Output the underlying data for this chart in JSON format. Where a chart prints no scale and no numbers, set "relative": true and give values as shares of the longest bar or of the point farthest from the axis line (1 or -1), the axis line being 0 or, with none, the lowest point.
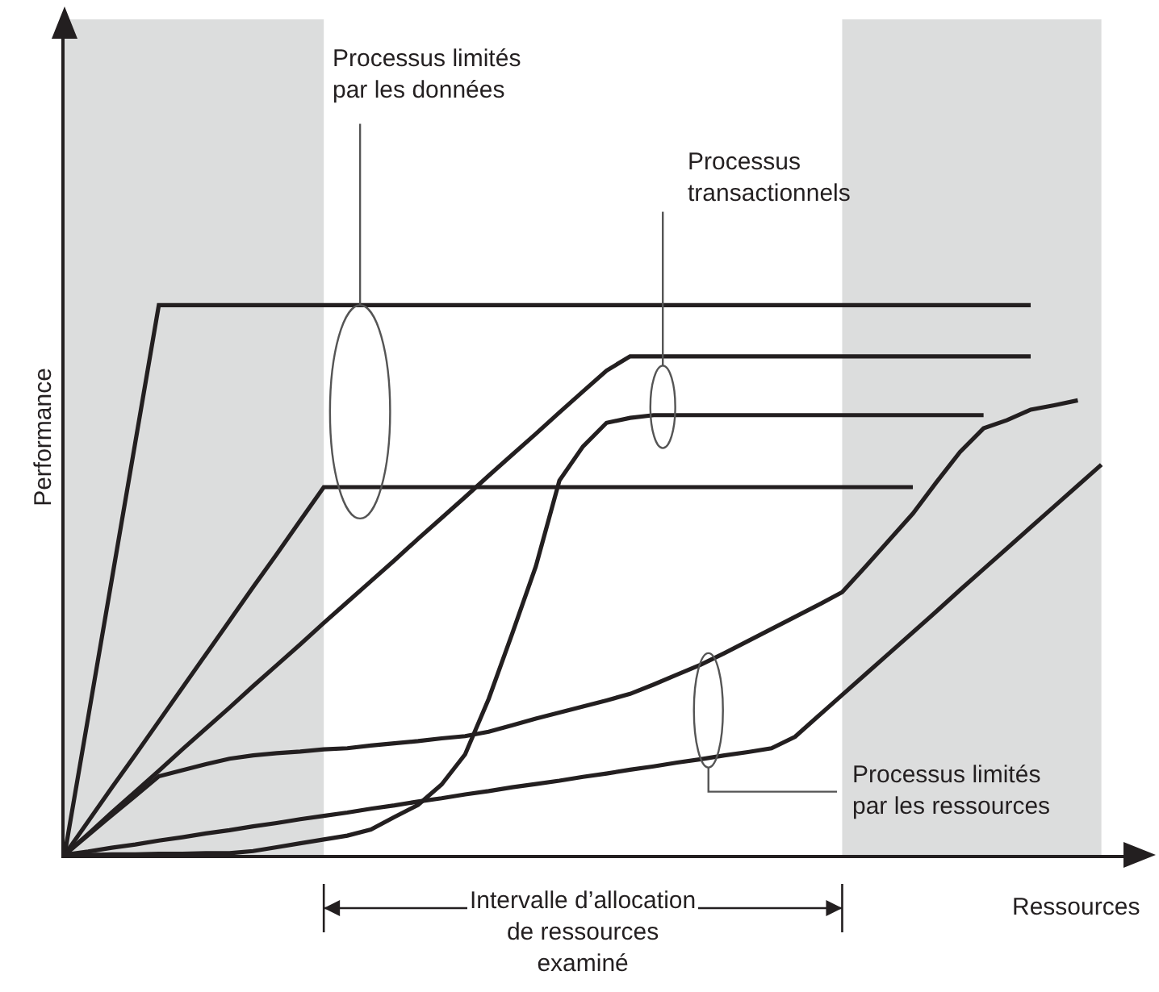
{
  "chart_data": {
    "type": "line",
    "relative": true,
    "xlabel": "Ressources",
    "ylabel": "Performance",
    "grid": false,
    "marker": "none",
    "line_style": "solid",
    "categories": [
      null,
      null,
      null,
      null,
      null,
      null,
      null,
      null,
      null,
      null,
      null,
      null,
      null,
      null,
      null,
      null,
      null,
      null,
      null,
      null,
      null,
      null,
      null,
      null,
      null,
      null,
      null,
      null,
      null,
      null,
      null,
      null,
      null,
      null,
      null,
      null,
      null,
      null,
      null,
      null,
      null,
      null,
      null,
      null,
      null
    ],
    "series": [
      {
        "color": "#231f20",
        "values": [
          0,
          0.25,
          0.5,
          0.75,
          1,
          1,
          1,
          1,
          1,
          1,
          1,
          1,
          1,
          1,
          1,
          1,
          1,
          1,
          1,
          1,
          1,
          1,
          1,
          1,
          1,
          1,
          1,
          1,
          1,
          1,
          1,
          1,
          1,
          1,
          1,
          1,
          1,
          1,
          1,
          1,
          1,
          1,
          null,
          null,
          null
        ]
      },
      {
        "color": "#231f20",
        "values": [
          0,
          0.061,
          0.122,
          0.182,
          0.243,
          0.304,
          0.365,
          0.426,
          0.487,
          0.547,
          0.608,
          0.669,
          0.669,
          0.669,
          0.669,
          0.669,
          0.669,
          0.669,
          0.669,
          0.669,
          0.669,
          0.669,
          0.669,
          0.669,
          0.669,
          0.669,
          0.669,
          0.669,
          0.669,
          0.669,
          0.669,
          0.669,
          0.669,
          0.669,
          0.669,
          0.669,
          0.669,
          null,
          null,
          null,
          null,
          null,
          null,
          null,
          null
        ]
      },
      {
        "color": "#231f20",
        "values": [
          0,
          0.038,
          0.077,
          0.115,
          0.153,
          0.192,
          0.23,
          0.268,
          0.307,
          0.345,
          0.383,
          0.422,
          0.46,
          0.498,
          0.536,
          0.575,
          0.613,
          0.651,
          0.69,
          0.728,
          0.766,
          0.805,
          0.843,
          0.881,
          0.907,
          0.907,
          0.907,
          0.907,
          0.907,
          0.907,
          0.907,
          0.907,
          0.907,
          0.907,
          0.907,
          0.907,
          0.907,
          0.907,
          0.907,
          0.907,
          0.907,
          0.907,
          null,
          null,
          null
        ]
      },
      {
        "color": "#231f20",
        "values": [
          0,
          0,
          0.001,
          0.001,
          0.002,
          0.002,
          0.003,
          0.003,
          0.007,
          0.014,
          0.021,
          0.028,
          0.035,
          0.046,
          0.069,
          0.091,
          0.128,
          0.183,
          0.284,
          0.403,
          0.525,
          0.681,
          0.743,
          0.786,
          0.795,
          0.8,
          0.8,
          0.8,
          0.8,
          0.8,
          0.8,
          0.8,
          0.8,
          0.8,
          0.8,
          0.8,
          0.8,
          0.8,
          0.8,
          0.8,
          null,
          null,
          null,
          null,
          null
        ]
      },
      {
        "color": "#231f20",
        "values": [
          0,
          0.036,
          0.072,
          0.107,
          0.143,
          0.154,
          0.165,
          0.175,
          0.181,
          0.185,
          0.188,
          0.192,
          0.194,
          0.199,
          0.203,
          0.207,
          0.212,
          0.216,
          0.224,
          0.236,
          0.248,
          0.259,
          0.27,
          0.281,
          0.293,
          0.31,
          0.328,
          0.346,
          0.367,
          0.389,
          0.411,
          0.433,
          0.455,
          0.478,
          0.525,
          0.573,
          0.621,
          0.678,
          0.733,
          0.776,
          0.791,
          0.81,
          0.818,
          0.827,
          null
        ]
      },
      {
        "color": "#231f20",
        "values": [
          0,
          0.006,
          0.013,
          0.019,
          0.026,
          0.032,
          0.039,
          0.045,
          0.052,
          0.058,
          0.065,
          0.071,
          0.077,
          0.084,
          0.09,
          0.097,
          0.103,
          0.11,
          0.116,
          0.123,
          0.129,
          0.135,
          0.142,
          0.148,
          0.155,
          0.161,
          0.168,
          0.174,
          0.181,
          0.187,
          0.194,
          0.215,
          0.253,
          0.291,
          0.329,
          0.367,
          0.405,
          0.443,
          0.482,
          0.52,
          0.558,
          0.596,
          0.634,
          0.672,
          0.71
        ]
      }
    ],
    "annotations": [
      "Processus limités\npar les données",
      "Processus\ntransactionnels",
      "Processus limités\npar les ressources",
      "Intervalle d’allocation\nde ressources\nexaminé"
    ]
  }
}
